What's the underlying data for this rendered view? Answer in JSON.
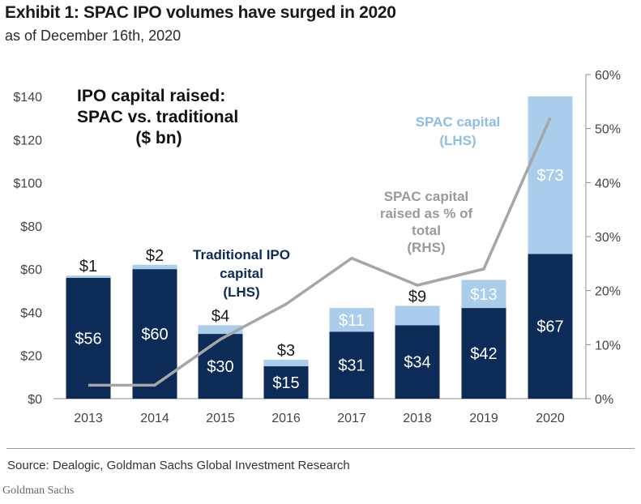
{
  "header": {
    "title": "Exhibit 1: SPAC IPO volumes have surged in 2020",
    "subtitle": "as of December 16th, 2020"
  },
  "footer": {
    "source": "Source: Dealogic, Goldman Sachs Global Investment Research",
    "credit": "Goldman Sachs"
  },
  "colors": {
    "traditional": "#0d2b57",
    "spac": "#a9cdea",
    "line": "#a6a6a6",
    "spac_label": "#8dbfe3",
    "traditional_label": "#0d2b57",
    "line_label": "#9a9a9a"
  },
  "chart_data": {
    "type": "bar",
    "stacked": true,
    "title": "IPO capital raised: SPAC vs. traditional ($ bn)",
    "title_lines": [
      "IPO capital raised:",
      "SPAC vs. traditional",
      "($ bn)"
    ],
    "categories": [
      "2013",
      "2014",
      "2015",
      "2016",
      "2017",
      "2018",
      "2019",
      "2020"
    ],
    "series": [
      {
        "name": "Traditional IPO capital (LHS)",
        "label_lines": [
          "Traditional IPO",
          "capital",
          "(LHS)"
        ],
        "values": [
          56,
          60,
          30,
          15,
          31,
          34,
          42,
          67
        ],
        "data_labels": [
          "$56",
          "$60",
          "$30",
          "$15",
          "$31",
          "$34",
          "$42",
          "$67"
        ]
      },
      {
        "name": "SPAC capital (LHS)",
        "label_lines": [
          "SPAC capital",
          "(LHS)"
        ],
        "values": [
          1,
          2,
          4,
          3,
          11,
          9,
          13,
          73
        ],
        "data_labels": [
          "$1",
          "$2",
          "$4",
          "$3",
          "$11",
          "$9",
          "$13",
          "$73"
        ]
      },
      {
        "name": "SPAC capital raised as % of total (RHS)",
        "type": "line",
        "axis": "right",
        "label_lines": [
          "SPAC capital",
          "raised as % of",
          "total",
          "(RHS)"
        ],
        "values": [
          2.5,
          2.5,
          11,
          17.5,
          26,
          21,
          24,
          52
        ]
      }
    ],
    "left_axis": {
      "ylim": [
        0,
        140
      ],
      "ticks": [
        0,
        20,
        40,
        60,
        80,
        100,
        120,
        140
      ],
      "tick_labels": [
        "$0",
        "$20",
        "$40",
        "$60",
        "$80",
        "$100",
        "$120",
        "$140"
      ]
    },
    "right_axis": {
      "ylim": [
        0,
        60
      ],
      "ticks": [
        0,
        10,
        20,
        30,
        40,
        50,
        60
      ],
      "tick_labels": [
        "0%",
        "10%",
        "20%",
        "30%",
        "40%",
        "50%",
        "60%"
      ]
    },
    "grid": false
  }
}
